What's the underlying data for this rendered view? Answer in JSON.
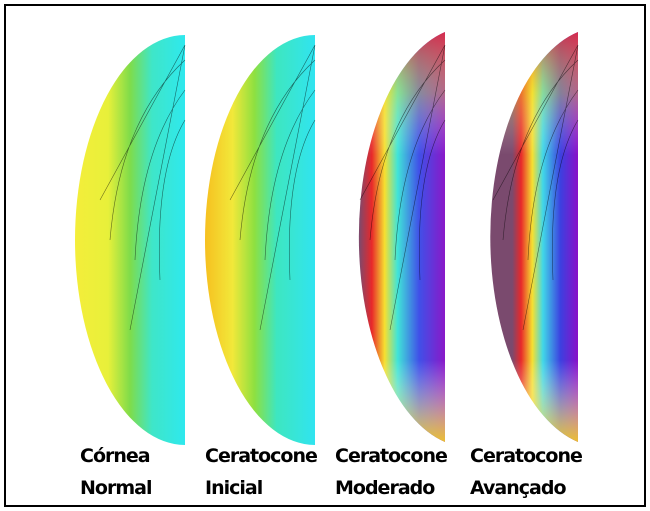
{
  "panels": [
    {
      "lines": [
        "Córnea",
        "Normal"
      ]
    },
    {
      "lines": [
        "Ceratocone",
        "Inicial"
      ]
    },
    {
      "lines": [
        "Ceratocone",
        "Moderado"
      ]
    },
    {
      "lines": [
        "Ceratocone",
        "Avançado"
      ]
    }
  ]
}
